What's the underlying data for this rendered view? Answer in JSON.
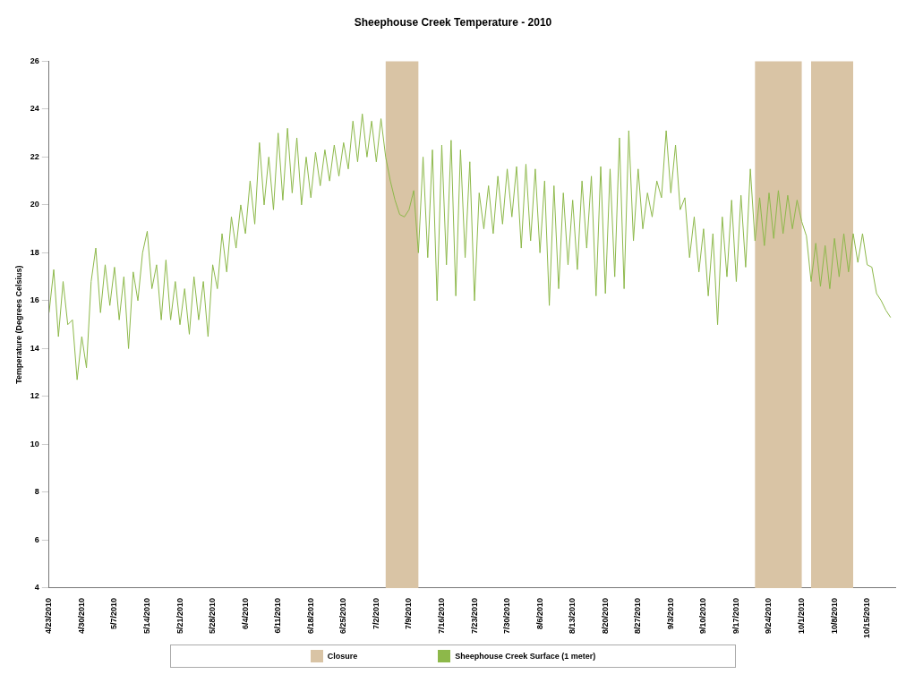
{
  "chart_data": {
    "type": "line",
    "title": "Sheephouse Creek Temperature - 2010",
    "ylabel": "Temperature (Degrees Celsius)",
    "x": [
      "2010-04-23",
      "2010-04-24",
      "2010-04-25",
      "2010-04-26",
      "2010-04-27",
      "2010-04-28",
      "2010-04-29",
      "2010-04-30",
      "2010-05-01",
      "2010-05-02",
      "2010-05-03",
      "2010-05-04",
      "2010-05-05",
      "2010-05-06",
      "2010-05-07",
      "2010-05-08",
      "2010-05-09",
      "2010-05-10",
      "2010-05-11",
      "2010-05-12",
      "2010-05-13",
      "2010-05-14",
      "2010-05-15",
      "2010-05-16",
      "2010-05-17",
      "2010-05-18",
      "2010-05-19",
      "2010-05-20",
      "2010-05-21",
      "2010-05-22",
      "2010-05-23",
      "2010-05-24",
      "2010-05-25",
      "2010-05-26",
      "2010-05-27",
      "2010-05-28",
      "2010-05-29",
      "2010-05-30",
      "2010-05-31",
      "2010-06-01",
      "2010-06-02",
      "2010-06-03",
      "2010-06-04",
      "2010-06-05",
      "2010-06-06",
      "2010-06-07",
      "2010-06-08",
      "2010-06-09",
      "2010-06-10",
      "2010-06-11",
      "2010-06-12",
      "2010-06-13",
      "2010-06-14",
      "2010-06-15",
      "2010-06-16",
      "2010-06-17",
      "2010-06-18",
      "2010-06-19",
      "2010-06-20",
      "2010-06-21",
      "2010-06-22",
      "2010-06-23",
      "2010-06-24",
      "2010-06-25",
      "2010-06-26",
      "2010-06-27",
      "2010-06-28",
      "2010-06-29",
      "2010-06-30",
      "2010-07-01",
      "2010-07-02",
      "2010-07-03",
      "2010-07-04",
      "2010-07-05",
      "2010-07-06",
      "2010-07-07",
      "2010-07-08",
      "2010-07-09",
      "2010-07-10",
      "2010-07-11",
      "2010-07-12",
      "2010-07-13",
      "2010-07-14",
      "2010-07-15",
      "2010-07-16",
      "2010-07-17",
      "2010-07-18",
      "2010-07-19",
      "2010-07-20",
      "2010-07-21",
      "2010-07-22",
      "2010-07-23",
      "2010-07-24",
      "2010-07-25",
      "2010-07-26",
      "2010-07-27",
      "2010-07-28",
      "2010-07-29",
      "2010-07-30",
      "2010-07-31",
      "2010-08-01",
      "2010-08-02",
      "2010-08-03",
      "2010-08-04",
      "2010-08-05",
      "2010-08-06",
      "2010-08-07",
      "2010-08-08",
      "2010-08-09",
      "2010-08-10",
      "2010-08-11",
      "2010-08-12",
      "2010-08-13",
      "2010-08-14",
      "2010-08-15",
      "2010-08-16",
      "2010-08-17",
      "2010-08-18",
      "2010-08-19",
      "2010-08-20",
      "2010-08-21",
      "2010-08-22",
      "2010-08-23",
      "2010-08-24",
      "2010-08-25",
      "2010-08-26",
      "2010-08-27",
      "2010-08-28",
      "2010-08-29",
      "2010-08-30",
      "2010-08-31",
      "2010-09-01",
      "2010-09-02",
      "2010-09-03",
      "2010-09-04",
      "2010-09-05",
      "2010-09-06",
      "2010-09-07",
      "2010-09-08",
      "2010-09-09",
      "2010-09-10",
      "2010-09-11",
      "2010-09-12",
      "2010-09-13",
      "2010-09-14",
      "2010-09-15",
      "2010-09-16",
      "2010-09-17",
      "2010-09-18",
      "2010-09-19",
      "2010-09-20",
      "2010-09-21",
      "2010-09-22",
      "2010-09-23",
      "2010-09-24",
      "2010-09-25",
      "2010-09-26",
      "2010-09-27",
      "2010-09-28",
      "2010-09-29",
      "2010-09-30",
      "2010-10-01",
      "2010-10-02",
      "2010-10-03",
      "2010-10-04",
      "2010-10-05",
      "2010-10-06",
      "2010-10-07",
      "2010-10-08",
      "2010-10-09",
      "2010-10-10",
      "2010-10-11",
      "2010-10-12",
      "2010-10-13",
      "2010-10-14",
      "2010-10-15",
      "2010-10-16",
      "2010-10-17",
      "2010-10-18",
      "2010-10-19",
      "2010-10-20"
    ],
    "series": [
      {
        "name": "Sheephouse Creek Surface (1 meter)",
        "color": "#8db84a",
        "values": [
          15.5,
          17.3,
          14.5,
          16.8,
          15.0,
          15.2,
          12.7,
          14.5,
          13.2,
          16.8,
          18.2,
          15.5,
          17.5,
          15.8,
          17.4,
          15.2,
          17.0,
          14.0,
          17.2,
          16.0,
          18.0,
          18.9,
          16.5,
          17.5,
          15.2,
          17.7,
          15.2,
          16.8,
          15.0,
          16.5,
          14.6,
          17.0,
          15.2,
          16.8,
          14.5,
          17.5,
          16.5,
          18.8,
          17.2,
          19.5,
          18.2,
          20.0,
          18.8,
          21.0,
          19.2,
          22.6,
          20.0,
          22.0,
          19.8,
          23.0,
          20.2,
          23.2,
          20.5,
          22.8,
          20.0,
          22.0,
          20.3,
          22.2,
          20.8,
          22.3,
          21.0,
          22.5,
          21.2,
          22.6,
          21.5,
          23.5,
          21.8,
          23.8,
          22.0,
          23.5,
          21.8,
          23.6,
          22.0,
          21.0,
          20.2,
          19.6,
          19.5,
          19.8,
          20.6,
          18.0,
          22.0,
          17.8,
          22.3,
          16.0,
          22.5,
          17.5,
          22.7,
          16.2,
          22.3,
          17.8,
          21.8,
          16.0,
          20.5,
          19.0,
          20.8,
          18.8,
          21.2,
          19.2,
          21.5,
          19.5,
          21.6,
          18.2,
          21.7,
          18.5,
          21.5,
          18.0,
          21.0,
          15.8,
          20.8,
          16.5,
          20.5,
          17.5,
          20.2,
          17.3,
          21.0,
          18.2,
          21.2,
          16.2,
          21.6,
          16.3,
          21.5,
          17.0,
          22.8,
          16.5,
          23.1,
          18.5,
          21.5,
          19.0,
          20.5,
          19.5,
          21.0,
          20.3,
          23.1,
          20.5,
          22.5,
          19.8,
          20.3,
          17.8,
          19.5,
          17.2,
          19.0,
          16.2,
          18.8,
          15.0,
          19.5,
          17.0,
          20.2,
          16.8,
          20.4,
          17.4,
          21.5,
          18.5,
          20.3,
          18.3,
          20.5,
          18.6,
          20.6,
          18.8,
          20.4,
          19.0,
          20.2,
          19.3,
          18.7,
          16.8,
          18.4,
          16.6,
          18.3,
          16.5,
          18.6,
          17.0,
          18.8,
          17.2,
          18.8,
          17.6,
          18.8,
          17.5,
          17.4,
          16.3,
          16.0,
          15.6,
          15.3
        ]
      }
    ],
    "bands": [
      {
        "axis": "x",
        "from": "2010-07-04",
        "to": "2010-07-11",
        "label": "Closure",
        "color": "#d9c4a5"
      },
      {
        "axis": "x",
        "from": "2010-09-21",
        "to": "2010-10-01",
        "color": "#d9c4a5"
      },
      {
        "axis": "x",
        "from": "2010-10-03",
        "to": "2010-10-12",
        "color": "#d9c4a5"
      }
    ],
    "xlim": [
      "2010-04-23",
      "2010-10-21"
    ],
    "xticks": [
      {
        "value": "2010-04-23",
        "label": "4/23/2010"
      },
      {
        "value": "2010-04-30",
        "label": "4/30/2010"
      },
      {
        "value": "2010-05-07",
        "label": "5/7/2010"
      },
      {
        "value": "2010-05-14",
        "label": "5/14/2010"
      },
      {
        "value": "2010-05-21",
        "label": "5/21/2010"
      },
      {
        "value": "2010-05-28",
        "label": "5/28/2010"
      },
      {
        "value": "2010-06-04",
        "label": "6/4/2010"
      },
      {
        "value": "2010-06-11",
        "label": "6/11/2010"
      },
      {
        "value": "2010-06-18",
        "label": "6/18/2010"
      },
      {
        "value": "2010-06-25",
        "label": "6/25/2010"
      },
      {
        "value": "2010-07-02",
        "label": "7/2/2010"
      },
      {
        "value": "2010-07-09",
        "label": "7/9/2010"
      },
      {
        "value": "2010-07-16",
        "label": "7/16/2010"
      },
      {
        "value": "2010-07-23",
        "label": "7/23/2010"
      },
      {
        "value": "2010-07-30",
        "label": "7/30/2010"
      },
      {
        "value": "2010-08-06",
        "label": "8/6/2010"
      },
      {
        "value": "2010-08-13",
        "label": "8/13/2010"
      },
      {
        "value": "2010-08-20",
        "label": "8/20/2010"
      },
      {
        "value": "2010-08-27",
        "label": "8/27/2010"
      },
      {
        "value": "2010-09-03",
        "label": "9/3/2010"
      },
      {
        "value": "2010-09-10",
        "label": "9/10/2010"
      },
      {
        "value": "2010-09-17",
        "label": "9/17/2010"
      },
      {
        "value": "2010-09-24",
        "label": "9/24/2010"
      },
      {
        "value": "2010-10-01",
        "label": "10/1/2010"
      },
      {
        "value": "2010-10-08",
        "label": "10/8/2010"
      },
      {
        "value": "2010-10-15",
        "label": "10/15/2010"
      }
    ],
    "ylim": [
      4,
      26
    ],
    "yticks": [
      4,
      6,
      8,
      10,
      12,
      14,
      16,
      18,
      20,
      22,
      24,
      26
    ],
    "grid": false,
    "legend": "bottom",
    "marker": "none",
    "line_style": "solid"
  }
}
